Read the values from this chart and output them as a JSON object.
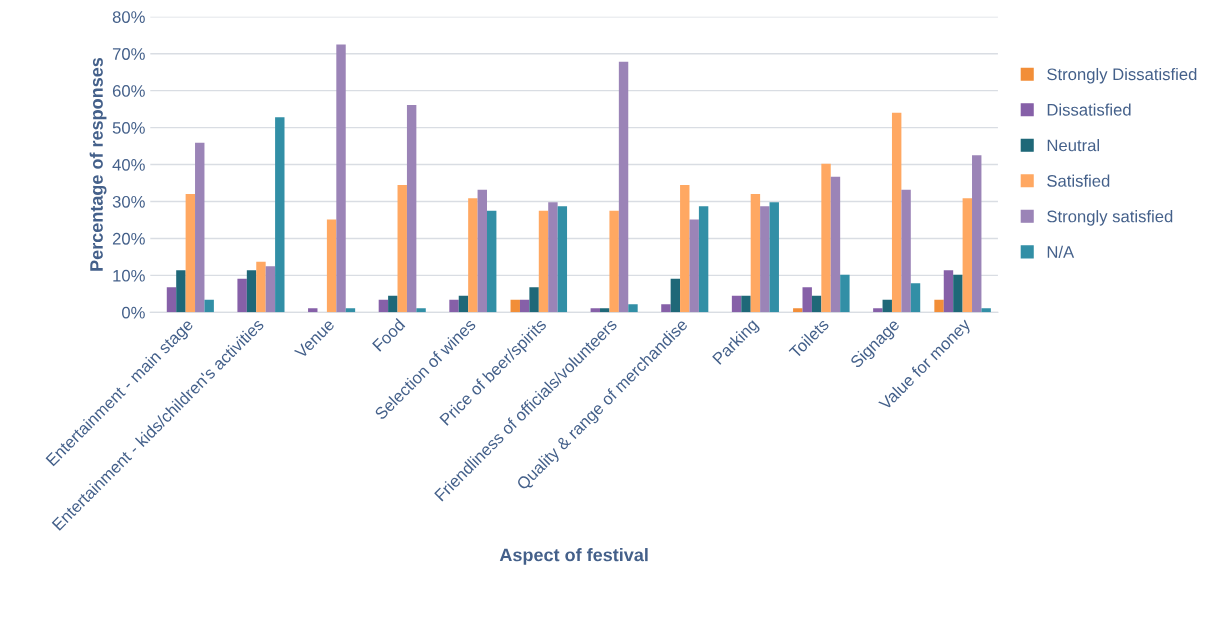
{
  "chart_data": {
    "type": "bar",
    "xlabel": "Aspect of festival",
    "ylabel": "Percentage of responses",
    "categories": [
      "Entertainment - main stage",
      "Entertainment - kids/children's activities",
      "Venue",
      "Food",
      "Selection of wines",
      "Price of beer/spirits",
      "Friendliness of officials/volunteers",
      "Quality & range of merchandise",
      "Parking",
      "Toilets",
      "Signage",
      "Value for money"
    ],
    "series": [
      {
        "name": "Strongly Dissatisfied",
        "color": "#f28e38",
        "values": [
          0,
          0,
          0,
          0,
          0,
          3.4,
          0,
          0,
          0,
          1.1,
          0,
          3.4
        ]
      },
      {
        "name": "Dissatisfied",
        "color": "#8660a8",
        "values": [
          6.8,
          9.1,
          1.1,
          3.4,
          3.4,
          3.4,
          1.1,
          2.2,
          4.5,
          6.8,
          1.1,
          11.4
        ]
      },
      {
        "name": "Neutral",
        "color": "#1f6878",
        "values": [
          11.4,
          11.4,
          0,
          4.5,
          4.5,
          6.8,
          1.1,
          9.1,
          4.5,
          4.5,
          3.4,
          10.2
        ]
      },
      {
        "name": "Satisfied",
        "color": "#ffa862",
        "values": [
          32.0,
          13.7,
          25.1,
          34.5,
          30.9,
          27.5,
          27.5,
          34.5,
          32.0,
          40.2,
          54.0,
          30.9
        ]
      },
      {
        "name": "Strongly satisfied",
        "color": "#9b84b7",
        "values": [
          45.9,
          12.5,
          72.5,
          56.1,
          33.2,
          29.8,
          67.8,
          25.1,
          28.7,
          36.7,
          33.2,
          42.5
        ]
      },
      {
        "name": "N/A",
        "color": "#328fa6",
        "values": [
          3.4,
          52.8,
          1.1,
          1.1,
          27.5,
          28.7,
          2.2,
          28.7,
          29.8,
          10.2,
          7.9,
          1.1
        ]
      }
    ],
    "ylim": [
      0,
      80
    ],
    "yticks": [
      {
        "value": 0,
        "label": "0%"
      },
      {
        "value": 10,
        "label": "10%"
      },
      {
        "value": 20,
        "label": "20%"
      },
      {
        "value": 30,
        "label": "30%"
      },
      {
        "value": 40,
        "label": "40%"
      },
      {
        "value": 50,
        "label": "50%"
      },
      {
        "value": 60,
        "label": "60%"
      },
      {
        "value": 70,
        "label": "70%"
      },
      {
        "value": 80,
        "label": "80%"
      }
    ],
    "grid": "y",
    "legend": "right"
  }
}
